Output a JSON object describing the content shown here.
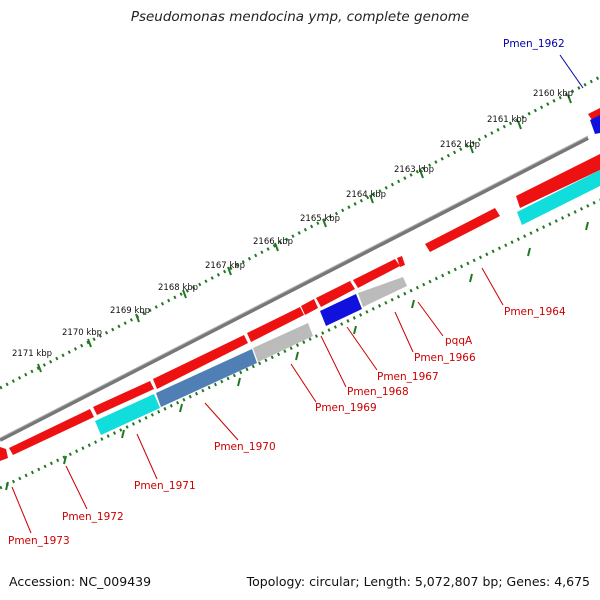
{
  "title": "Pseudomonas mendocina ymp, complete genome",
  "accession": "Accession: NC_009439",
  "summary": "Topology: circular; Length: 5,072,807 bp; Genes: 4,675",
  "colors": {
    "red_gene": "#ee1111",
    "cyan_gene": "#11dddd",
    "blue_gene": "#1111dd",
    "steelblue_gene": "#4f7fb4",
    "grey_gene": "#bbbbbb",
    "backbone": "#777777",
    "tick": "#227722",
    "label_red": "#cc0000",
    "label_blue": "#0000aa"
  },
  "kbp_labels": [
    "2160 kbp",
    "2161 kbp",
    "2162 kbp",
    "2163 kbp",
    "2164 kbp",
    "2165 kbp",
    "2166 kbp",
    "2167 kbp",
    "2168 kbp",
    "2169 kbp",
    "2170 kbp",
    "2171 kbp"
  ],
  "gene_labels": [
    "Pmen_1962",
    "Pmen_1964",
    "pqqA",
    "Pmen_1966",
    "Pmen_1967",
    "Pmen_1968",
    "Pmen_1969",
    "Pmen_1970",
    "Pmen_1971",
    "Pmen_1972",
    "Pmen_1973"
  ]
}
